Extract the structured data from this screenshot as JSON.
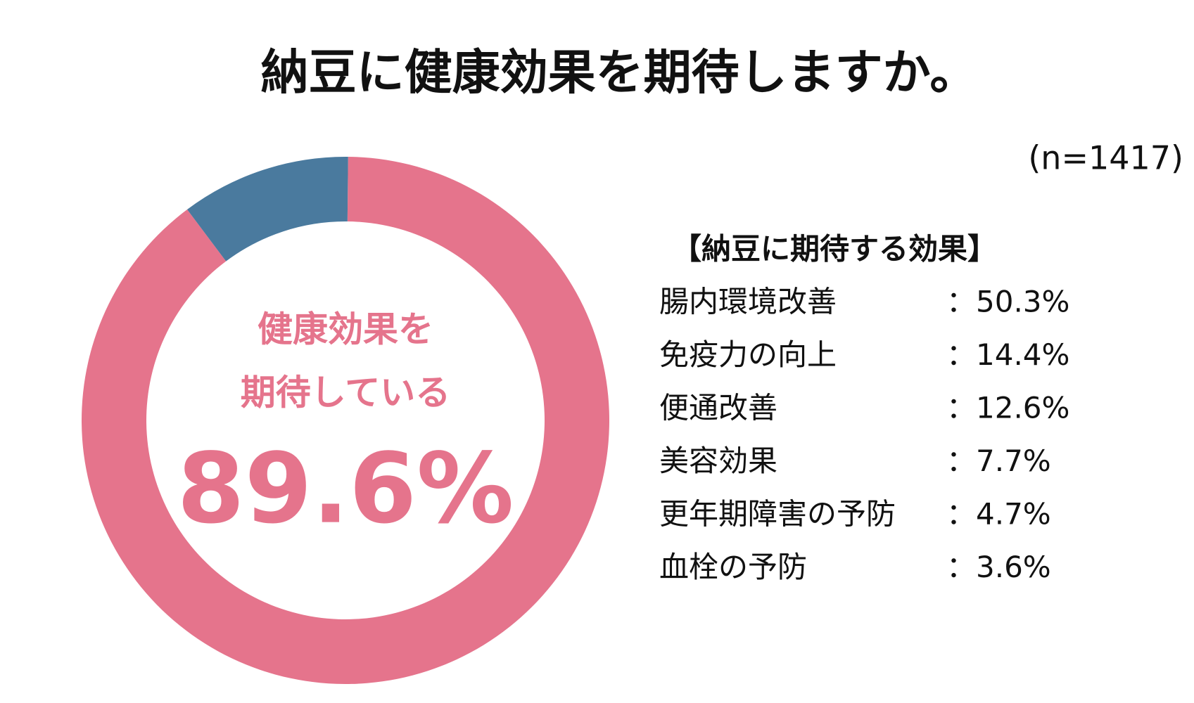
{
  "chart_data": {
    "type": "donut",
    "title": "納豆に健康効果を期待しますか。",
    "subtitle": "(n=1417)",
    "categories": [
      null,
      null
    ],
    "values": [
      89.6,
      10.4
    ],
    "value_labels": [
      "89.6%",
      null
    ],
    "colors": [
      "#e5748c",
      "#4a7a9e"
    ],
    "center_label": [
      "健康効果を",
      "期待している"
    ]
  },
  "effects": {
    "title": "【納豆に期待する効果】",
    "items": [
      {
        "label": "腸内環境改善",
        "value": "：50.3%"
      },
      {
        "label": "免疫力の向上",
        "value": "：14.4%"
      },
      {
        "label": "便通改善",
        "value": "：12.6%"
      },
      {
        "label": "美容効果",
        "value": "：7.7%"
      },
      {
        "label": "更年期障害の予防",
        "value": "：4.7%"
      },
      {
        "label": "血栓の予防",
        "value": "：3.6%"
      }
    ]
  }
}
